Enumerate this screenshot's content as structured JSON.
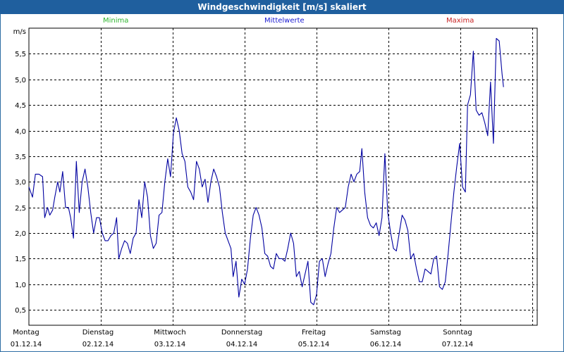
{
  "window": {
    "title": "Windgeschwindigkeit [m/s] skaliert"
  },
  "legend": [
    {
      "label": "Minima",
      "color": "#2db52d"
    },
    {
      "label": "Mittelwerte",
      "color": "#1a1ad2"
    },
    {
      "label": "Maxima",
      "color": "#c82323"
    }
  ],
  "chart_data": {
    "type": "line",
    "title": "Windgeschwindigkeit [m/s] skaliert",
    "ylabel": "m/s",
    "ylim": [
      0.2,
      6.0
    ],
    "yticks": [
      "0,5",
      "1,0",
      "1,5",
      "2,0",
      "2,5",
      "3,0",
      "3,5",
      "4,0",
      "4,5",
      "5,0",
      "5,5"
    ],
    "yvalues": [
      0.5,
      1.0,
      1.5,
      2.0,
      2.5,
      3.0,
      3.5,
      4.0,
      4.5,
      5.0,
      5.5
    ],
    "xlim": [
      0,
      7.13
    ],
    "day_ticks": [
      {
        "day": "Montag",
        "date": "01.12.14"
      },
      {
        "day": "Dienstag",
        "date": "02.12.14"
      },
      {
        "day": "Mittwoch",
        "date": "03.12.14"
      },
      {
        "day": "Donnerstag",
        "date": "04.12.14"
      },
      {
        "day": "Freitag",
        "date": "05.12.14"
      },
      {
        "day": "Samstag",
        "date": "06.12.14"
      },
      {
        "day": "Sonntag",
        "date": "07.12.14"
      }
    ],
    "grid": true,
    "series": [
      {
        "name": "Mittelwerte",
        "color": "#0000a0",
        "points": [
          [
            0.0,
            2.9
          ],
          [
            0.05,
            2.7
          ],
          [
            0.09,
            3.15
          ],
          [
            0.14,
            3.15
          ],
          [
            0.19,
            3.1
          ],
          [
            0.22,
            2.3
          ],
          [
            0.26,
            2.5
          ],
          [
            0.29,
            2.35
          ],
          [
            0.33,
            2.45
          ],
          [
            0.36,
            2.7
          ],
          [
            0.4,
            3.0
          ],
          [
            0.43,
            2.8
          ],
          [
            0.47,
            3.2
          ],
          [
            0.51,
            2.5
          ],
          [
            0.55,
            2.5
          ],
          [
            0.58,
            2.3
          ],
          [
            0.62,
            1.9
          ],
          [
            0.66,
            3.4
          ],
          [
            0.7,
            2.4
          ],
          [
            0.74,
            3.0
          ],
          [
            0.78,
            3.25
          ],
          [
            0.82,
            2.9
          ],
          [
            0.86,
            2.4
          ],
          [
            0.9,
            2.0
          ],
          [
            0.94,
            2.3
          ],
          [
            0.98,
            2.3
          ],
          [
            1.02,
            2.0
          ],
          [
            1.06,
            1.85
          ],
          [
            1.1,
            1.85
          ],
          [
            1.14,
            1.95
          ],
          [
            1.18,
            2.0
          ],
          [
            1.22,
            2.3
          ],
          [
            1.25,
            1.5
          ],
          [
            1.29,
            1.7
          ],
          [
            1.33,
            1.85
          ],
          [
            1.37,
            1.8
          ],
          [
            1.41,
            1.6
          ],
          [
            1.45,
            1.9
          ],
          [
            1.49,
            2.0
          ],
          [
            1.53,
            2.65
          ],
          [
            1.57,
            2.3
          ],
          [
            1.61,
            3.0
          ],
          [
            1.65,
            2.7
          ],
          [
            1.69,
            1.95
          ],
          [
            1.73,
            1.7
          ],
          [
            1.77,
            1.8
          ],
          [
            1.81,
            2.35
          ],
          [
            1.85,
            2.4
          ],
          [
            1.89,
            3.0
          ],
          [
            1.93,
            3.45
          ],
          [
            1.97,
            3.1
          ],
          [
            2.01,
            3.95
          ],
          [
            2.05,
            4.25
          ],
          [
            2.09,
            4.0
          ],
          [
            2.13,
            3.55
          ],
          [
            2.17,
            3.4
          ],
          [
            2.21,
            2.9
          ],
          [
            2.25,
            2.8
          ],
          [
            2.29,
            2.65
          ],
          [
            2.33,
            3.4
          ],
          [
            2.37,
            3.25
          ],
          [
            2.41,
            2.9
          ],
          [
            2.45,
            3.05
          ],
          [
            2.49,
            2.6
          ],
          [
            2.53,
            3.0
          ],
          [
            2.57,
            3.25
          ],
          [
            2.61,
            3.1
          ],
          [
            2.65,
            2.9
          ],
          [
            2.69,
            2.4
          ],
          [
            2.73,
            2.0
          ],
          [
            2.77,
            1.85
          ],
          [
            2.81,
            1.7
          ],
          [
            2.84,
            1.15
          ],
          [
            2.88,
            1.45
          ],
          [
            2.92,
            0.75
          ],
          [
            2.96,
            1.1
          ],
          [
            3.0,
            1.0
          ],
          [
            3.04,
            1.3
          ],
          [
            3.08,
            1.9
          ],
          [
            3.12,
            2.35
          ],
          [
            3.16,
            2.5
          ],
          [
            3.2,
            2.35
          ],
          [
            3.24,
            2.1
          ],
          [
            3.28,
            1.6
          ],
          [
            3.32,
            1.55
          ],
          [
            3.36,
            1.35
          ],
          [
            3.4,
            1.3
          ],
          [
            3.44,
            1.6
          ],
          [
            3.48,
            1.5
          ],
          [
            3.52,
            1.5
          ],
          [
            3.56,
            1.45
          ],
          [
            3.6,
            1.7
          ],
          [
            3.64,
            2.0
          ],
          [
            3.68,
            1.8
          ],
          [
            3.72,
            1.15
          ],
          [
            3.76,
            1.25
          ],
          [
            3.8,
            0.95
          ],
          [
            3.84,
            1.2
          ],
          [
            3.88,
            1.45
          ],
          [
            3.92,
            0.65
          ],
          [
            3.96,
            0.6
          ],
          [
            4.0,
            0.8
          ],
          [
            4.04,
            1.45
          ],
          [
            4.08,
            1.5
          ],
          [
            4.12,
            1.15
          ],
          [
            4.16,
            1.4
          ],
          [
            4.2,
            1.6
          ],
          [
            4.24,
            2.1
          ],
          [
            4.28,
            2.5
          ],
          [
            4.32,
            2.4
          ],
          [
            4.36,
            2.45
          ],
          [
            4.4,
            2.5
          ],
          [
            4.44,
            2.9
          ],
          [
            4.48,
            3.15
          ],
          [
            4.52,
            3.0
          ],
          [
            4.56,
            3.15
          ],
          [
            4.6,
            3.2
          ],
          [
            4.63,
            3.65
          ],
          [
            4.67,
            2.8
          ],
          [
            4.71,
            2.3
          ],
          [
            4.75,
            2.15
          ],
          [
            4.79,
            2.1
          ],
          [
            4.83,
            2.2
          ],
          [
            4.87,
            1.95
          ],
          [
            4.91,
            2.3
          ],
          [
            4.95,
            3.55
          ],
          [
            4.99,
            2.4
          ],
          [
            5.03,
            2.0
          ],
          [
            5.07,
            1.7
          ],
          [
            5.11,
            1.65
          ],
          [
            5.15,
            2.0
          ],
          [
            5.19,
            2.35
          ],
          [
            5.23,
            2.25
          ],
          [
            5.27,
            2.05
          ],
          [
            5.31,
            1.5
          ],
          [
            5.35,
            1.6
          ],
          [
            5.39,
            1.3
          ],
          [
            5.43,
            1.05
          ],
          [
            5.47,
            1.05
          ],
          [
            5.51,
            1.3
          ],
          [
            5.55,
            1.25
          ],
          [
            5.59,
            1.2
          ],
          [
            5.63,
            1.5
          ],
          [
            5.67,
            1.55
          ],
          [
            5.71,
            0.95
          ],
          [
            5.75,
            0.9
          ],
          [
            5.79,
            1.05
          ],
          [
            5.83,
            1.6
          ],
          [
            5.87,
            2.2
          ],
          [
            5.91,
            2.8
          ],
          [
            5.95,
            3.3
          ],
          [
            5.99,
            3.75
          ],
          [
            6.03,
            2.9
          ],
          [
            6.07,
            2.8
          ],
          [
            6.1,
            4.5
          ],
          [
            6.14,
            4.7
          ],
          [
            6.18,
            5.55
          ],
          [
            6.22,
            4.4
          ],
          [
            6.26,
            4.3
          ],
          [
            6.3,
            4.35
          ],
          [
            6.34,
            4.15
          ],
          [
            6.38,
            3.9
          ],
          [
            6.42,
            4.95
          ],
          [
            6.46,
            3.75
          ],
          [
            6.5,
            5.8
          ],
          [
            6.54,
            5.75
          ],
          [
            6.58,
            5.1
          ],
          [
            6.6,
            4.85
          ]
        ]
      }
    ]
  }
}
